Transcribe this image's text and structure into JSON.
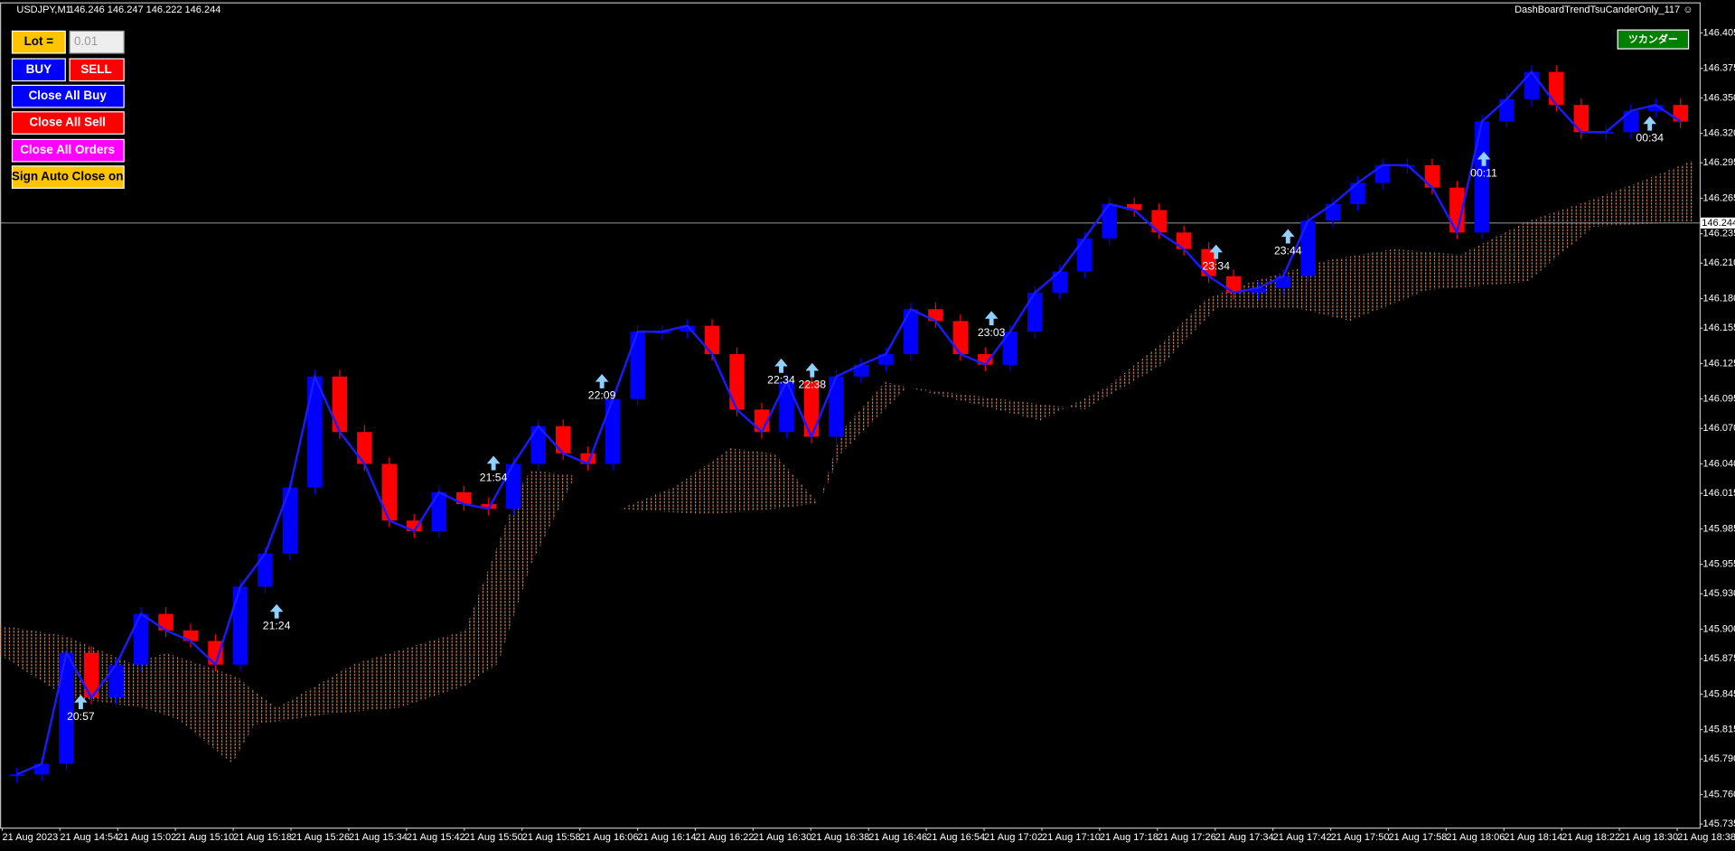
{
  "header": {
    "symbol": "USDJPY,M1",
    "quote": "146.246 146.247 146.222 146.244",
    "expert": "DashBoardTrendTsuCanderOnly_117 ☺"
  },
  "panel": {
    "lot_label": "Lot  =",
    "lot_value": "0.01",
    "buy": "BUY",
    "sell": "SELL",
    "close_all_buy": "Close All Buy",
    "close_all_sell": "Close All Sell",
    "close_all_orders": "Close All Orders",
    "auto_close": "Sign Auto Close on",
    "tsukander": "ツカンダー"
  },
  "chart": {
    "ylim": [
      145.732,
      146.43
    ],
    "price_ticks": [
      146.405,
      146.375,
      {
        "value": 146.35,
        "label": "146.350"
      },
      {
        "value": 146.32,
        "label": "146.320"
      },
      146.295,
      146.265,
      146.235,
      {
        "value": 146.21,
        "label": "146.210"
      },
      {
        "value": 146.18,
        "label": "146.180"
      },
      146.155,
      146.125,
      146.095,
      {
        "value": 146.07,
        "label": "146.070"
      },
      {
        "value": 146.04,
        "label": "146.040"
      },
      146.015,
      145.985,
      145.955,
      {
        "value": 145.93,
        "label": "145.930"
      },
      {
        "value": 145.9,
        "label": "145.900"
      },
      145.875,
      145.845,
      145.815,
      {
        "value": 145.79,
        "label": "145.790"
      },
      {
        "value": 145.76,
        "label": "145.760"
      },
      145.735
    ],
    "current_price": 146.244,
    "time_labels": [
      "21 Aug 2023",
      "21 Aug 14:54",
      "21 Aug 15:02",
      "21 Aug 15:10",
      "21 Aug 15:18",
      "21 Aug 15:26",
      "21 Aug 15:34",
      "21 Aug 15:42",
      "21 Aug 15:50",
      "21 Aug 15:58",
      "21 Aug 16:06",
      "21 Aug 16:14",
      "21 Aug 16:22",
      "21 Aug 16:30",
      "21 Aug 16:38",
      "21 Aug 16:46",
      "21 Aug 16:54",
      "21 Aug 17:02",
      "21 Aug 17:10",
      "21 Aug 17:18",
      "21 Aug 17:26",
      "21 Aug 17:34",
      "21 Aug 17:42",
      "21 Aug 17:50",
      "21 Aug 17:58",
      "21 Aug 18:06",
      "21 Aug 18:14",
      "21 Aug 18:22",
      "21 Aug 18:30",
      "21 Aug 18:38"
    ],
    "closes": [
      145.777,
      145.786,
      145.88,
      145.842,
      145.87,
      145.913,
      145.899,
      145.89,
      145.87,
      145.936,
      145.964,
      146.02,
      146.114,
      146.067,
      146.04,
      145.992,
      145.983,
      146.016,
      146.006,
      146.002,
      146.04,
      146.072,
      146.049,
      146.04,
      146.095,
      146.152,
      146.152,
      146.157,
      146.133,
      146.086,
      146.067,
      146.11,
      146.063,
      146.114,
      146.124,
      146.133,
      146.171,
      146.161,
      146.133,
      146.124,
      146.152,
      146.185,
      146.203,
      146.231,
      146.26,
      146.255,
      146.236,
      146.222,
      146.199,
      146.185,
      146.189,
      146.199,
      146.246,
      146.26,
      146.278,
      146.293,
      146.293,
      146.274,
      146.236,
      146.33,
      146.349,
      146.372,
      146.344,
      146.321,
      146.321,
      146.339,
      146.344,
      146.33
    ],
    "signals": [
      "20:57",
      "21:24",
      "21:54",
      "22:09",
      "22:34",
      "22:38",
      "23:03",
      "23:34",
      "23:44",
      "00:11",
      "00:34"
    ]
  }
}
